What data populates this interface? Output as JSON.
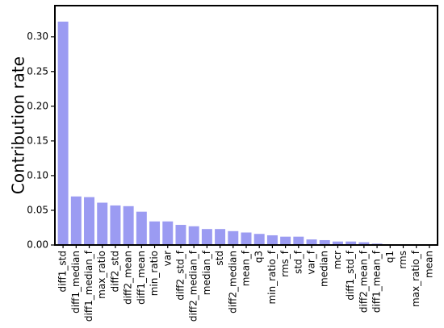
{
  "chart_data": {
    "type": "bar",
    "title": "",
    "xlabel": "",
    "ylabel": "Contribution rate",
    "ylim": [
      0,
      0.345
    ],
    "grid": false,
    "legend": "none",
    "yticks": [
      "0.00",
      "0.05",
      "0.10",
      "0.15",
      "0.20",
      "0.25",
      "0.30"
    ],
    "bar_color": "#9b9bf2",
    "categories": [
      "diff1_std",
      "diff1_median",
      "diff1_median_f",
      "max_ratio",
      "diff2_std",
      "diff2_mean",
      "diff1_mean",
      "min_ratio",
      "var",
      "diff2_std_f",
      "diff2_median_f",
      "median_f",
      "std",
      "diff2_median",
      "mean_f",
      "q3",
      "min_ratio_f",
      "rms_f",
      "std_f",
      "var_f",
      "median",
      "mcr",
      "diff1_std_f",
      "diff2_mean_f",
      "diff1_mean_f",
      "q1",
      "rms",
      "max_ratio_f",
      "mean"
    ],
    "values": [
      0.322,
      0.07,
      0.069,
      0.061,
      0.057,
      0.056,
      0.048,
      0.034,
      0.034,
      0.029,
      0.027,
      0.023,
      0.023,
      0.02,
      0.018,
      0.016,
      0.014,
      0.012,
      0.012,
      0.008,
      0.007,
      0.005,
      0.005,
      0.004,
      0.002,
      0.001,
      0.001,
      0.001,
      0.0005
    ]
  }
}
